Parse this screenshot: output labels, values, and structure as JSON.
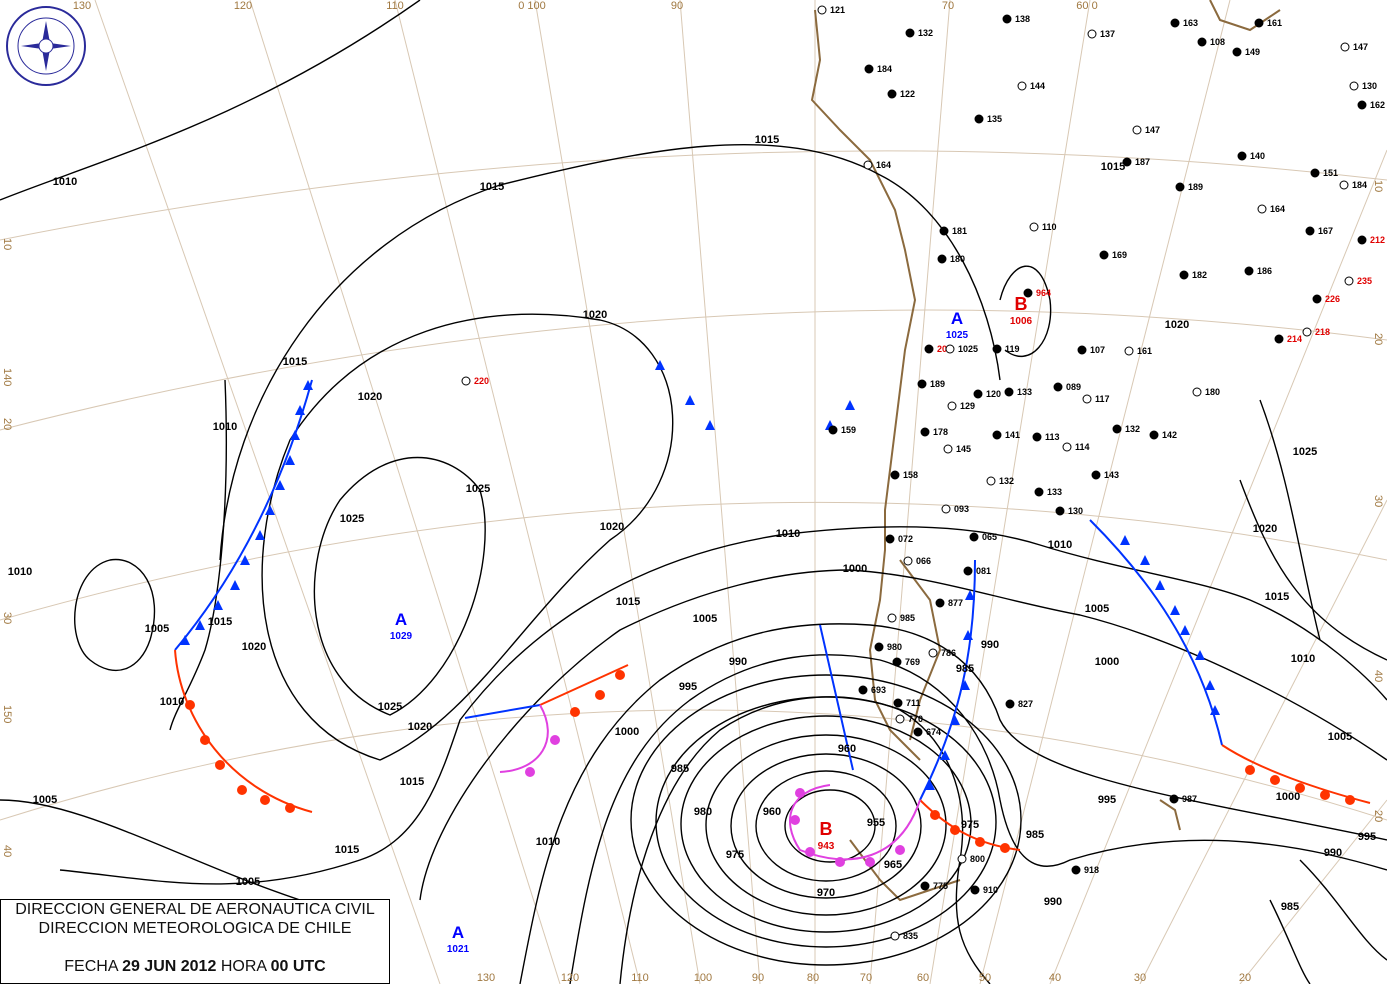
{
  "legend": {
    "line1": "DIRECCION GENERAL DE AERONAUTICA CIVIL",
    "line2": "DIRECCION METEOROLOGICA DE CHILE",
    "date_prefix": "FECHA",
    "date": "29 JUN 2012",
    "hour_prefix": "HORA",
    "hour": "00 UTC"
  },
  "logo": {
    "text": "DIRECCION METEOROLOGICA DE CHILE"
  },
  "grid_labels": {
    "top": [
      "130",
      "120",
      "110",
      "0 100",
      "90",
      "70",
      "60 0"
    ],
    "bottom": [
      "130",
      "120",
      "110",
      "100",
      "90",
      "80",
      "70",
      "60",
      "50",
      "40",
      "30",
      "20"
    ],
    "left": [
      "10",
      "140",
      "20",
      "30",
      "150",
      "40"
    ],
    "right": [
      "20",
      "30",
      "40",
      "20",
      "10"
    ]
  },
  "centers": [
    {
      "type": "A",
      "value": "1029",
      "color": "#0000ff"
    },
    {
      "type": "A",
      "value": "1021",
      "color": "#0000ff"
    },
    {
      "type": "A",
      "value": "1025",
      "color": "#0000ff"
    },
    {
      "type": "B",
      "value": "943",
      "color": "#e00000"
    },
    {
      "type": "B",
      "value": "1006",
      "color": "#e00000"
    }
  ],
  "isobar_labels": [
    "1010",
    "1015",
    "1015",
    "1020",
    "1020",
    "1020",
    "1025",
    "1025",
    "1025",
    "1010",
    "1015",
    "1005",
    "1010",
    "1010",
    "1020",
    "1015",
    "1010",
    "1015",
    "1005",
    "1015",
    "1005",
    "1005",
    "1000",
    "995",
    "990",
    "985",
    "980",
    "975",
    "970",
    "965",
    "960",
    "960",
    "955",
    "1010",
    "1005",
    "1000",
    "995",
    "990",
    "985",
    "985",
    "975",
    "990",
    "1020",
    "1015",
    "1010",
    "1005",
    "1000",
    "995",
    "990",
    "985",
    "1025",
    "1015",
    "1020",
    "1000",
    "1010",
    "1015",
    "1020"
  ],
  "stations": [
    "121",
    "132",
    "138",
    "137",
    "163",
    "161",
    "147",
    "184",
    "122",
    "144",
    "108",
    "149",
    "130",
    "162",
    "135",
    "147",
    "140",
    "151",
    "164",
    "187",
    "189",
    "184",
    "181",
    "180",
    "110",
    "169",
    "182",
    "164",
    "167",
    "212",
    "235",
    "186",
    "226",
    "218",
    "214",
    "200",
    "1025",
    "119",
    "107",
    "161",
    "189",
    "120",
    "129",
    "133",
    "089",
    "117",
    "132",
    "142",
    "180",
    "159",
    "178",
    "145",
    "141",
    "113",
    "114",
    "143",
    "158",
    "132",
    "133",
    "130",
    "093",
    "072",
    "065",
    "066",
    "081",
    "877",
    "985",
    "980",
    "769",
    "786",
    "693",
    "711",
    "770",
    "674",
    "827",
    "800",
    "775",
    "910",
    "835",
    "918",
    "987",
    "220",
    "964"
  ],
  "colors": {
    "isobar": "#000000",
    "cold_front": "#0033ff",
    "warm_front": "#ff3300",
    "occluded_front": "#e040e0",
    "coastline": "#8b6a3e",
    "high": "#0000ff",
    "low": "#e00000"
  }
}
